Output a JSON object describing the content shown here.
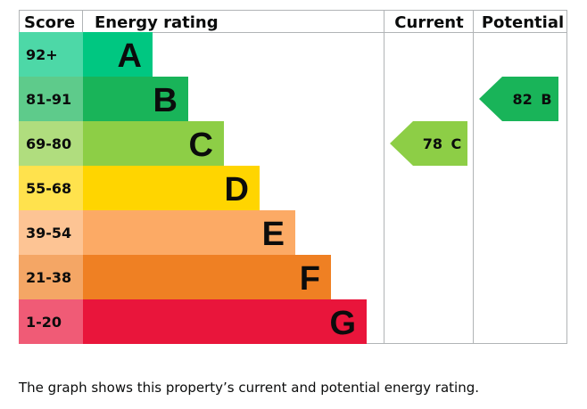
{
  "header": {
    "score": "Score",
    "energy_rating": "Energy rating",
    "current": "Current",
    "potential": "Potential"
  },
  "chart_data": {
    "type": "bar",
    "title": "",
    "categories": [
      "A",
      "B",
      "C",
      "D",
      "E",
      "F",
      "G"
    ],
    "bands": [
      {
        "letter": "A",
        "score": "92+",
        "color": "#00c781",
        "score_bg": "#4dd8a7"
      },
      {
        "letter": "B",
        "score": "81-91",
        "color": "#19b459",
        "score_bg": "#5ecb8b"
      },
      {
        "letter": "C",
        "score": "69-80",
        "color": "#8dce46",
        "score_bg": "#b0dd7e"
      },
      {
        "letter": "D",
        "score": "55-68",
        "color": "#ffd500",
        "score_bg": "#ffe24d"
      },
      {
        "letter": "E",
        "score": "39-54",
        "color": "#fcaa65",
        "score_bg": "#fdc494"
      },
      {
        "letter": "F",
        "score": "21-38",
        "color": "#ef8023",
        "score_bg": "#f4a665"
      },
      {
        "letter": "G",
        "score": "1-20",
        "color": "#e9153b",
        "score_bg": "#f05b76"
      }
    ],
    "current": {
      "value": 78,
      "band": "C",
      "label": "78 C",
      "color": "#8dce46"
    },
    "potential": {
      "value": 82,
      "band": "B",
      "label": "82 B",
      "color": "#19b459"
    }
  },
  "caption": "The graph shows this property’s current and potential energy rating."
}
